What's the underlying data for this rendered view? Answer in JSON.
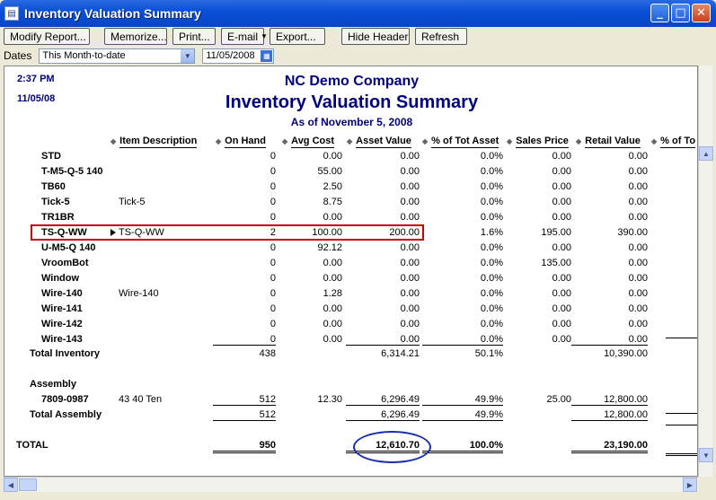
{
  "window": {
    "title": "Inventory Valuation Summary",
    "app_icon": "document-icon",
    "buttons": [
      "minimize",
      "maximize",
      "close"
    ]
  },
  "toolbar": {
    "modify": "Modify Report...",
    "memorize": "Memorize...",
    "print": "Print...",
    "email": "E-mail",
    "export": "Export...",
    "hide_header": "Hide Header",
    "refresh": "Refresh"
  },
  "dates": {
    "label": "Dates",
    "range": "This Month-to-date",
    "date": "11/05/2008"
  },
  "report": {
    "time": "2:37 PM",
    "date": "11/05/08",
    "company": "NC Demo Company",
    "title": "Inventory Valuation Summary",
    "subtitle": "As of November 5, 2008",
    "columns": {
      "desc": "Item Description",
      "onhand": "On Hand",
      "avg": "Avg Cost",
      "asset": "Asset Value",
      "pct": "% of Tot Asset",
      "sales": "Sales Price",
      "retail": "Retail Value",
      "pct_retail": "% of To"
    },
    "rows": [
      {
        "name": "STD",
        "desc": "",
        "onhand": "0",
        "avg": "0.00",
        "asset": "0.00",
        "pct": "0.0%",
        "sales": "0.00",
        "retail": "0.00"
      },
      {
        "name": "T-M5-Q-5 140",
        "desc": "",
        "onhand": "0",
        "avg": "55.00",
        "asset": "0.00",
        "pct": "0.0%",
        "sales": "0.00",
        "retail": "0.00"
      },
      {
        "name": "TB60",
        "desc": "",
        "onhand": "0",
        "avg": "2.50",
        "asset": "0.00",
        "pct": "0.0%",
        "sales": "0.00",
        "retail": "0.00"
      },
      {
        "name": "Tick-5",
        "desc": "Tick-5",
        "onhand": "0",
        "avg": "8.75",
        "asset": "0.00",
        "pct": "0.0%",
        "sales": "0.00",
        "retail": "0.00"
      },
      {
        "name": "TR1BR",
        "desc": "",
        "onhand": "0",
        "avg": "0.00",
        "asset": "0.00",
        "pct": "0.0%",
        "sales": "0.00",
        "retail": "0.00"
      },
      {
        "name": "TS-Q-WW",
        "desc": "TS-Q-WW",
        "onhand": "2",
        "avg": "100.00",
        "asset": "200.00",
        "pct": "1.6%",
        "sales": "195.00",
        "retail": "390.00"
      },
      {
        "name": "U-M5-Q 140",
        "desc": "",
        "onhand": "0",
        "avg": "92.12",
        "asset": "0.00",
        "pct": "0.0%",
        "sales": "0.00",
        "retail": "0.00"
      },
      {
        "name": "VroomBot",
        "desc": "",
        "onhand": "0",
        "avg": "0.00",
        "asset": "0.00",
        "pct": "0.0%",
        "sales": "135.00",
        "retail": "0.00"
      },
      {
        "name": "Window",
        "desc": "",
        "onhand": "0",
        "avg": "0.00",
        "asset": "0.00",
        "pct": "0.0%",
        "sales": "0.00",
        "retail": "0.00"
      },
      {
        "name": "Wire-140",
        "desc": "Wire-140",
        "onhand": "0",
        "avg": "1.28",
        "asset": "0.00",
        "pct": "0.0%",
        "sales": "0.00",
        "retail": "0.00"
      },
      {
        "name": "Wire-141",
        "desc": "",
        "onhand": "0",
        "avg": "0.00",
        "asset": "0.00",
        "pct": "0.0%",
        "sales": "0.00",
        "retail": "0.00"
      },
      {
        "name": "Wire-142",
        "desc": "",
        "onhand": "0",
        "avg": "0.00",
        "asset": "0.00",
        "pct": "0.0%",
        "sales": "0.00",
        "retail": "0.00"
      },
      {
        "name": "Wire-143",
        "desc": "",
        "onhand": "0",
        "avg": "0.00",
        "asset": "0.00",
        "pct": "0.0%",
        "sales": "0.00",
        "retail": "0.00"
      }
    ],
    "total_inventory": {
      "name": "Total Inventory",
      "onhand": "438",
      "asset": "6,314.21",
      "pct": "50.1%",
      "retail": "10,390.00"
    },
    "assembly_section": "Assembly",
    "assembly_row": {
      "name": "7809-0987",
      "desc": "43 40 Ten",
      "onhand": "512",
      "avg": "12.30",
      "asset": "6,296.49",
      "pct": "49.9%",
      "sales": "25.00",
      "retail": "12,800.00"
    },
    "total_assembly": {
      "name": "Total Assembly",
      "onhand": "512",
      "asset": "6,296.49",
      "pct": "49.9%",
      "retail": "12,800.00"
    },
    "grand_total": {
      "name": "TOTAL",
      "onhand": "950",
      "asset": "12,610.70",
      "pct": "100.0%",
      "retail": "23,190.00"
    }
  },
  "colors": {
    "header_text": "#000080",
    "highlight_box": "#cc0000",
    "circle": "#1a2fa8"
  }
}
